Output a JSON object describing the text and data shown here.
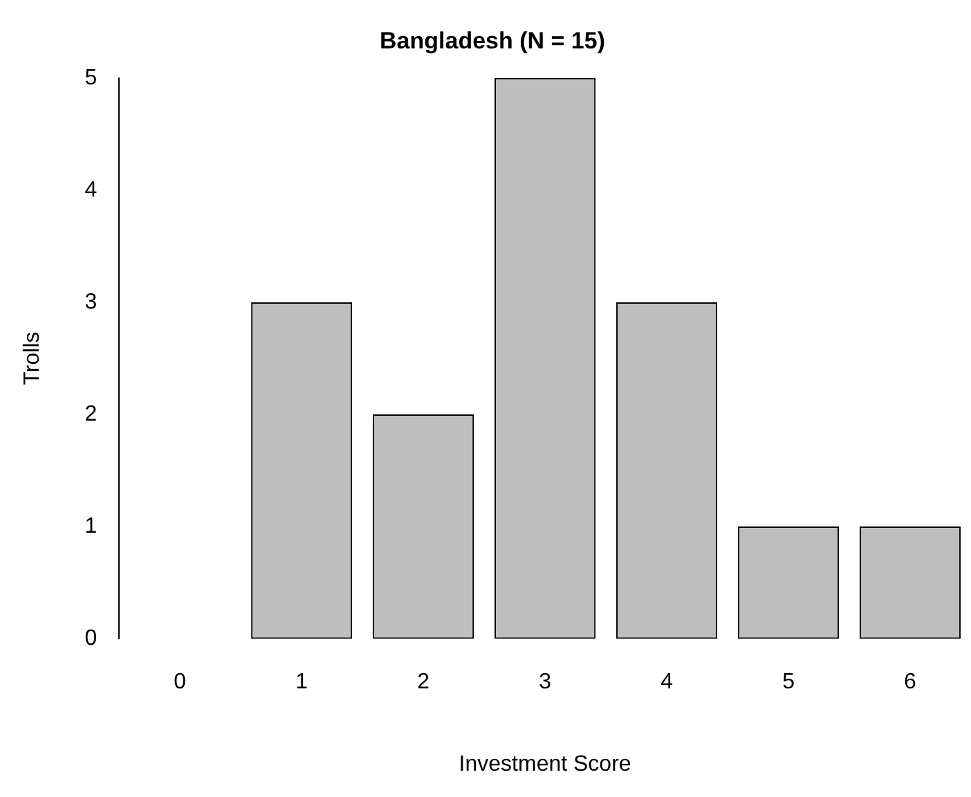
{
  "chart_data": {
    "type": "bar",
    "title": "Bangladesh (N = 15)",
    "xlabel": "Investment Score",
    "ylabel": "Trolls",
    "categories": [
      "0",
      "1",
      "2",
      "3",
      "4",
      "5",
      "6"
    ],
    "values": [
      0,
      3,
      2,
      5,
      3,
      1,
      1
    ],
    "color": "#bebebe",
    "ylim": [
      0,
      5
    ],
    "yticks": [
      0,
      1,
      2,
      3,
      4,
      5
    ],
    "grid": false,
    "legend": false
  }
}
